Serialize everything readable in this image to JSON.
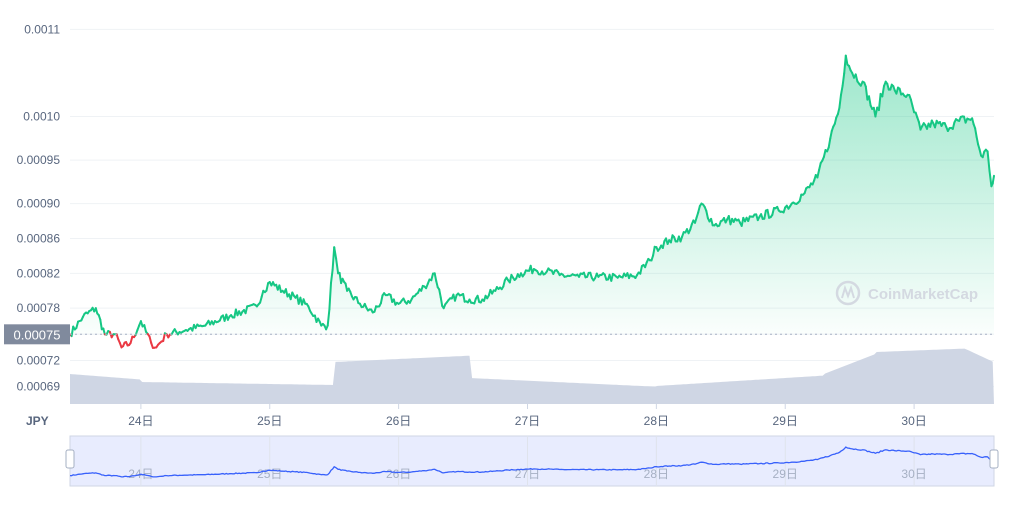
{
  "chart_data": {
    "type": "area",
    "currency": "JPY",
    "baseline_label": "0.00075",
    "baseline_value": 0.00075,
    "y_ticks": [
      "0.0011",
      "0.0010",
      "0.00095",
      "0.00090",
      "0.00086",
      "0.00082",
      "0.00078",
      "0.00075",
      "0.00072",
      "0.00069"
    ],
    "x_ticks": [
      "24日",
      "25日",
      "26日",
      "27日",
      "28日",
      "29日",
      "30日"
    ],
    "brush_ticks": [
      "24日",
      "25日",
      "26日",
      "27日",
      "28日",
      "29日",
      "30日"
    ],
    "watermark": "CoinMarketCap",
    "ylim": [
      0.00067,
      0.00112
    ],
    "x_range_days": [
      23.45,
      30.62
    ],
    "colors": {
      "up": "#16c784",
      "down": "#ea3943",
      "volume": "#cfd6e4",
      "brush_line": "#3861fb",
      "brush_fill": "#e8ecfe"
    },
    "series": [
      {
        "values": [
          [
            23.45,
            0.00075
          ],
          [
            23.55,
            0.00077
          ],
          [
            23.65,
            0.00078
          ],
          [
            23.72,
            0.00075
          ],
          [
            23.8,
            0.00075
          ],
          [
            23.85,
            0.000735
          ],
          [
            23.92,
            0.00074
          ],
          [
            24.0,
            0.000765
          ],
          [
            24.08,
            0.00074
          ],
          [
            24.12,
            0.000735
          ],
          [
            24.2,
            0.00075
          ],
          [
            24.35,
            0.000755
          ],
          [
            24.5,
            0.00076
          ],
          [
            24.7,
            0.000772
          ],
          [
            24.9,
            0.000782
          ],
          [
            24.95,
            0.0008
          ],
          [
            25.0,
            0.00081
          ],
          [
            25.1,
            0.0008
          ],
          [
            25.2,
            0.000792
          ],
          [
            25.3,
            0.000782
          ],
          [
            25.4,
            0.00076
          ],
          [
            25.45,
            0.00076
          ],
          [
            25.5,
            0.00085
          ],
          [
            25.53,
            0.00082
          ],
          [
            25.6,
            0.0008
          ],
          [
            25.7,
            0.000785
          ],
          [
            25.8,
            0.000775
          ],
          [
            25.9,
            0.000795
          ],
          [
            26.0,
            0.000785
          ],
          [
            26.1,
            0.00079
          ],
          [
            26.2,
            0.000805
          ],
          [
            26.28,
            0.00082
          ],
          [
            26.35,
            0.00078
          ],
          [
            26.45,
            0.000795
          ],
          [
            26.55,
            0.00079
          ],
          [
            26.65,
            0.00079
          ],
          [
            26.75,
            0.0008
          ],
          [
            26.85,
            0.000812
          ],
          [
            26.95,
            0.00082
          ],
          [
            27.05,
            0.000825
          ],
          [
            27.15,
            0.000822
          ],
          [
            27.25,
            0.000818
          ],
          [
            27.4,
            0.000816
          ],
          [
            27.55,
            0.000816
          ],
          [
            27.7,
            0.000815
          ],
          [
            27.85,
            0.000818
          ],
          [
            27.95,
            0.000835
          ],
          [
            28.0,
            0.00085
          ],
          [
            28.1,
            0.000858
          ],
          [
            28.2,
            0.000862
          ],
          [
            28.3,
            0.000878
          ],
          [
            28.35,
            0.0009
          ],
          [
            28.45,
            0.000875
          ],
          [
            28.55,
            0.000882
          ],
          [
            28.65,
            0.000878
          ],
          [
            28.8,
            0.000885
          ],
          [
            28.95,
            0.000892
          ],
          [
            29.05,
            0.0009
          ],
          [
            29.15,
            0.000912
          ],
          [
            29.25,
            0.00093
          ],
          [
            29.35,
            0.000975
          ],
          [
            29.42,
            0.00101
          ],
          [
            29.47,
            0.00107
          ],
          [
            29.52,
            0.00105
          ],
          [
            29.6,
            0.00104
          ],
          [
            29.7,
            0.001
          ],
          [
            29.78,
            0.00104
          ],
          [
            29.85,
            0.00103
          ],
          [
            29.95,
            0.001025
          ],
          [
            30.05,
            0.000985
          ],
          [
            30.15,
            0.000992
          ],
          [
            30.25,
            0.000988
          ],
          [
            30.35,
            0.000995
          ],
          [
            30.45,
            0.000998
          ],
          [
            30.52,
            0.000955
          ],
          [
            30.57,
            0.00096
          ],
          [
            30.6,
            0.00092
          ],
          [
            30.62,
            0.000932
          ]
        ]
      }
    ]
  }
}
